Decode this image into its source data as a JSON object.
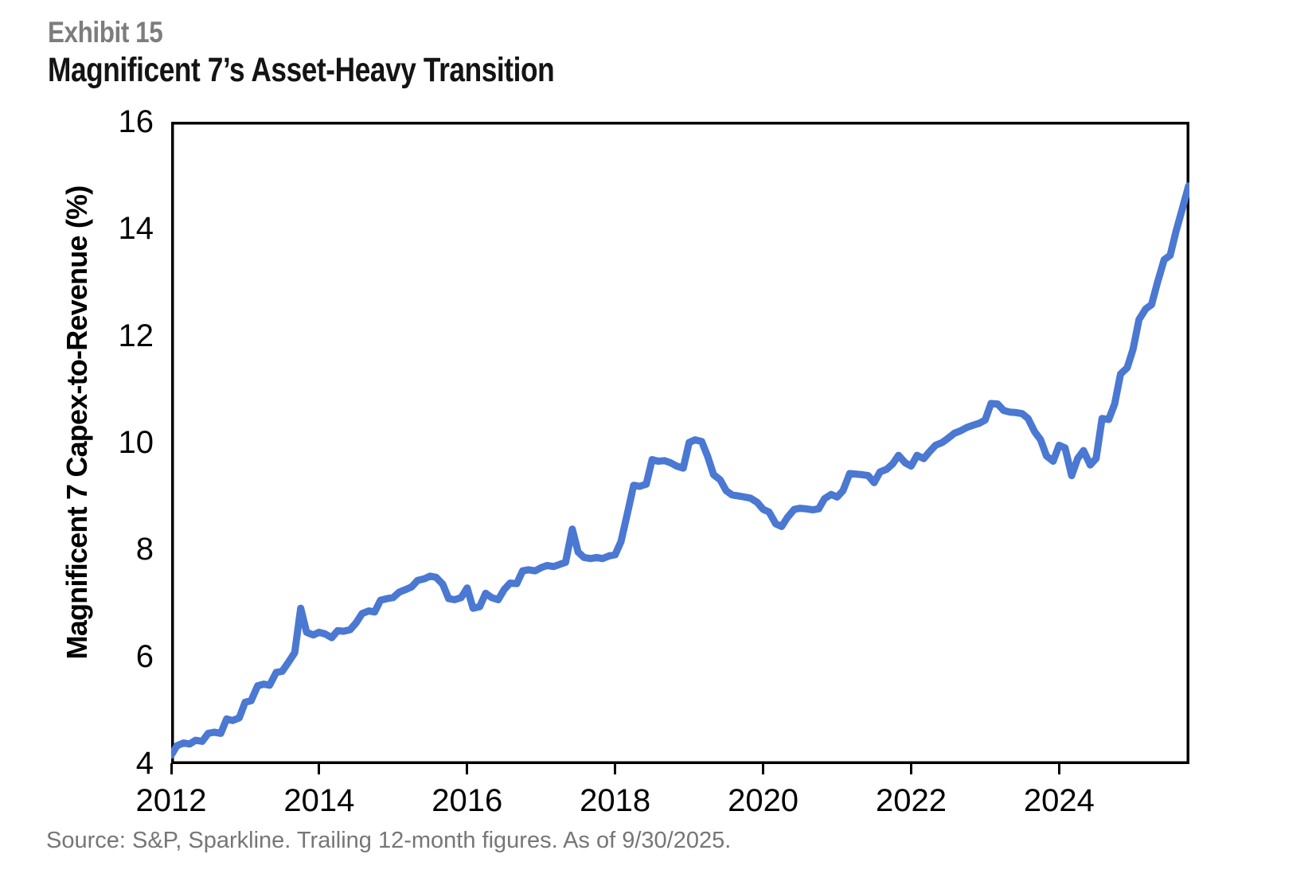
{
  "header": {
    "exhibit_label": "Exhibit 15",
    "title": "Magnificent 7’s Asset-Heavy Transition"
  },
  "source_note": "Source: S&P, Sparkline. Trailing 12-month figures. As of 9/30/2025.",
  "colors": {
    "line": "#4a78d2",
    "axis": "#000000",
    "exhibit_gray": "#7d7d7d",
    "source_gray": "#767676",
    "title_black": "#141414"
  },
  "chart_data": {
    "type": "line",
    "title": "Magnificent 7’s Asset-Heavy Transition",
    "xlabel": "",
    "ylabel": "Magnificent 7 Capex-to-Revenue (%)",
    "xlim": [
      2012,
      2025.75
    ],
    "ylim": [
      4,
      16
    ],
    "xticks": [
      2012,
      2014,
      2016,
      2018,
      2020,
      2022,
      2024
    ],
    "yticks": [
      4,
      6,
      8,
      10,
      12,
      14,
      16
    ],
    "grid": false,
    "legend_position": "none",
    "series": [
      {
        "name": "Magnificent 7 Capex-to-Revenue (%)",
        "points": [
          [
            2012.0,
            4.15
          ],
          [
            2012.08,
            4.33
          ],
          [
            2012.17,
            4.38
          ],
          [
            2012.25,
            4.36
          ],
          [
            2012.33,
            4.43
          ],
          [
            2012.42,
            4.41
          ],
          [
            2012.5,
            4.56
          ],
          [
            2012.58,
            4.58
          ],
          [
            2012.67,
            4.56
          ],
          [
            2012.75,
            4.83
          ],
          [
            2012.83,
            4.8
          ],
          [
            2012.92,
            4.85
          ],
          [
            2013.0,
            5.14
          ],
          [
            2013.08,
            5.17
          ],
          [
            2013.17,
            5.45
          ],
          [
            2013.25,
            5.48
          ],
          [
            2013.33,
            5.46
          ],
          [
            2013.42,
            5.7
          ],
          [
            2013.5,
            5.72
          ],
          [
            2013.58,
            5.88
          ],
          [
            2013.67,
            6.07
          ],
          [
            2013.75,
            6.9
          ],
          [
            2013.83,
            6.45
          ],
          [
            2013.92,
            6.4
          ],
          [
            2014.0,
            6.45
          ],
          [
            2014.08,
            6.42
          ],
          [
            2014.17,
            6.35
          ],
          [
            2014.25,
            6.48
          ],
          [
            2014.33,
            6.47
          ],
          [
            2014.42,
            6.5
          ],
          [
            2014.5,
            6.63
          ],
          [
            2014.58,
            6.8
          ],
          [
            2014.67,
            6.85
          ],
          [
            2014.75,
            6.83
          ],
          [
            2014.83,
            7.05
          ],
          [
            2014.92,
            7.08
          ],
          [
            2015.0,
            7.1
          ],
          [
            2015.08,
            7.2
          ],
          [
            2015.17,
            7.25
          ],
          [
            2015.25,
            7.3
          ],
          [
            2015.33,
            7.42
          ],
          [
            2015.42,
            7.45
          ],
          [
            2015.5,
            7.5
          ],
          [
            2015.58,
            7.48
          ],
          [
            2015.67,
            7.35
          ],
          [
            2015.75,
            7.08
          ],
          [
            2015.83,
            7.06
          ],
          [
            2015.92,
            7.1
          ],
          [
            2016.0,
            7.28
          ],
          [
            2016.08,
            6.9
          ],
          [
            2016.17,
            6.93
          ],
          [
            2016.25,
            7.18
          ],
          [
            2016.33,
            7.1
          ],
          [
            2016.42,
            7.06
          ],
          [
            2016.5,
            7.25
          ],
          [
            2016.58,
            7.37
          ],
          [
            2016.67,
            7.36
          ],
          [
            2016.75,
            7.6
          ],
          [
            2016.83,
            7.62
          ],
          [
            2016.92,
            7.6
          ],
          [
            2017.0,
            7.66
          ],
          [
            2017.08,
            7.7
          ],
          [
            2017.17,
            7.68
          ],
          [
            2017.25,
            7.72
          ],
          [
            2017.33,
            7.76
          ],
          [
            2017.42,
            8.38
          ],
          [
            2017.5,
            7.95
          ],
          [
            2017.58,
            7.85
          ],
          [
            2017.67,
            7.83
          ],
          [
            2017.75,
            7.85
          ],
          [
            2017.83,
            7.83
          ],
          [
            2017.92,
            7.88
          ],
          [
            2018.0,
            7.9
          ],
          [
            2018.08,
            8.15
          ],
          [
            2018.17,
            8.7
          ],
          [
            2018.25,
            9.2
          ],
          [
            2018.33,
            9.18
          ],
          [
            2018.42,
            9.22
          ],
          [
            2018.5,
            9.68
          ],
          [
            2018.58,
            9.65
          ],
          [
            2018.67,
            9.66
          ],
          [
            2018.75,
            9.62
          ],
          [
            2018.83,
            9.56
          ],
          [
            2018.92,
            9.52
          ],
          [
            2019.0,
            10.0
          ],
          [
            2019.08,
            10.05
          ],
          [
            2019.17,
            10.02
          ],
          [
            2019.25,
            9.74
          ],
          [
            2019.33,
            9.4
          ],
          [
            2019.42,
            9.3
          ],
          [
            2019.5,
            9.1
          ],
          [
            2019.58,
            9.02
          ],
          [
            2019.67,
            9.0
          ],
          [
            2019.75,
            8.98
          ],
          [
            2019.83,
            8.96
          ],
          [
            2019.92,
            8.88
          ],
          [
            2020.0,
            8.75
          ],
          [
            2020.08,
            8.7
          ],
          [
            2020.17,
            8.48
          ],
          [
            2020.25,
            8.43
          ],
          [
            2020.33,
            8.6
          ],
          [
            2020.42,
            8.75
          ],
          [
            2020.5,
            8.77
          ],
          [
            2020.58,
            8.76
          ],
          [
            2020.67,
            8.74
          ],
          [
            2020.75,
            8.76
          ],
          [
            2020.83,
            8.95
          ],
          [
            2020.92,
            9.03
          ],
          [
            2021.0,
            8.98
          ],
          [
            2021.08,
            9.1
          ],
          [
            2021.17,
            9.42
          ],
          [
            2021.25,
            9.41
          ],
          [
            2021.33,
            9.4
          ],
          [
            2021.42,
            9.38
          ],
          [
            2021.5,
            9.25
          ],
          [
            2021.58,
            9.45
          ],
          [
            2021.67,
            9.5
          ],
          [
            2021.75,
            9.6
          ],
          [
            2021.83,
            9.76
          ],
          [
            2021.92,
            9.62
          ],
          [
            2022.0,
            9.56
          ],
          [
            2022.08,
            9.76
          ],
          [
            2022.17,
            9.7
          ],
          [
            2022.25,
            9.83
          ],
          [
            2022.33,
            9.95
          ],
          [
            2022.42,
            10.0
          ],
          [
            2022.5,
            10.08
          ],
          [
            2022.58,
            10.17
          ],
          [
            2022.67,
            10.22
          ],
          [
            2022.75,
            10.28
          ],
          [
            2022.83,
            10.32
          ],
          [
            2022.92,
            10.36
          ],
          [
            2023.0,
            10.42
          ],
          [
            2023.08,
            10.73
          ],
          [
            2023.17,
            10.72
          ],
          [
            2023.25,
            10.6
          ],
          [
            2023.33,
            10.57
          ],
          [
            2023.42,
            10.56
          ],
          [
            2023.5,
            10.54
          ],
          [
            2023.58,
            10.45
          ],
          [
            2023.67,
            10.2
          ],
          [
            2023.75,
            10.05
          ],
          [
            2023.83,
            9.75
          ],
          [
            2023.92,
            9.65
          ],
          [
            2024.0,
            9.95
          ],
          [
            2024.08,
            9.9
          ],
          [
            2024.17,
            9.38
          ],
          [
            2024.25,
            9.7
          ],
          [
            2024.33,
            9.85
          ],
          [
            2024.42,
            9.58
          ],
          [
            2024.5,
            9.7
          ],
          [
            2024.58,
            10.45
          ],
          [
            2024.67,
            10.43
          ],
          [
            2024.75,
            10.72
          ],
          [
            2024.83,
            11.28
          ],
          [
            2024.92,
            11.4
          ],
          [
            2025.0,
            11.75
          ],
          [
            2025.08,
            12.3
          ],
          [
            2025.17,
            12.5
          ],
          [
            2025.25,
            12.58
          ],
          [
            2025.33,
            13.0
          ],
          [
            2025.42,
            13.42
          ],
          [
            2025.5,
            13.5
          ],
          [
            2025.58,
            13.95
          ],
          [
            2025.67,
            14.4
          ],
          [
            2025.75,
            14.8
          ]
        ]
      }
    ]
  }
}
